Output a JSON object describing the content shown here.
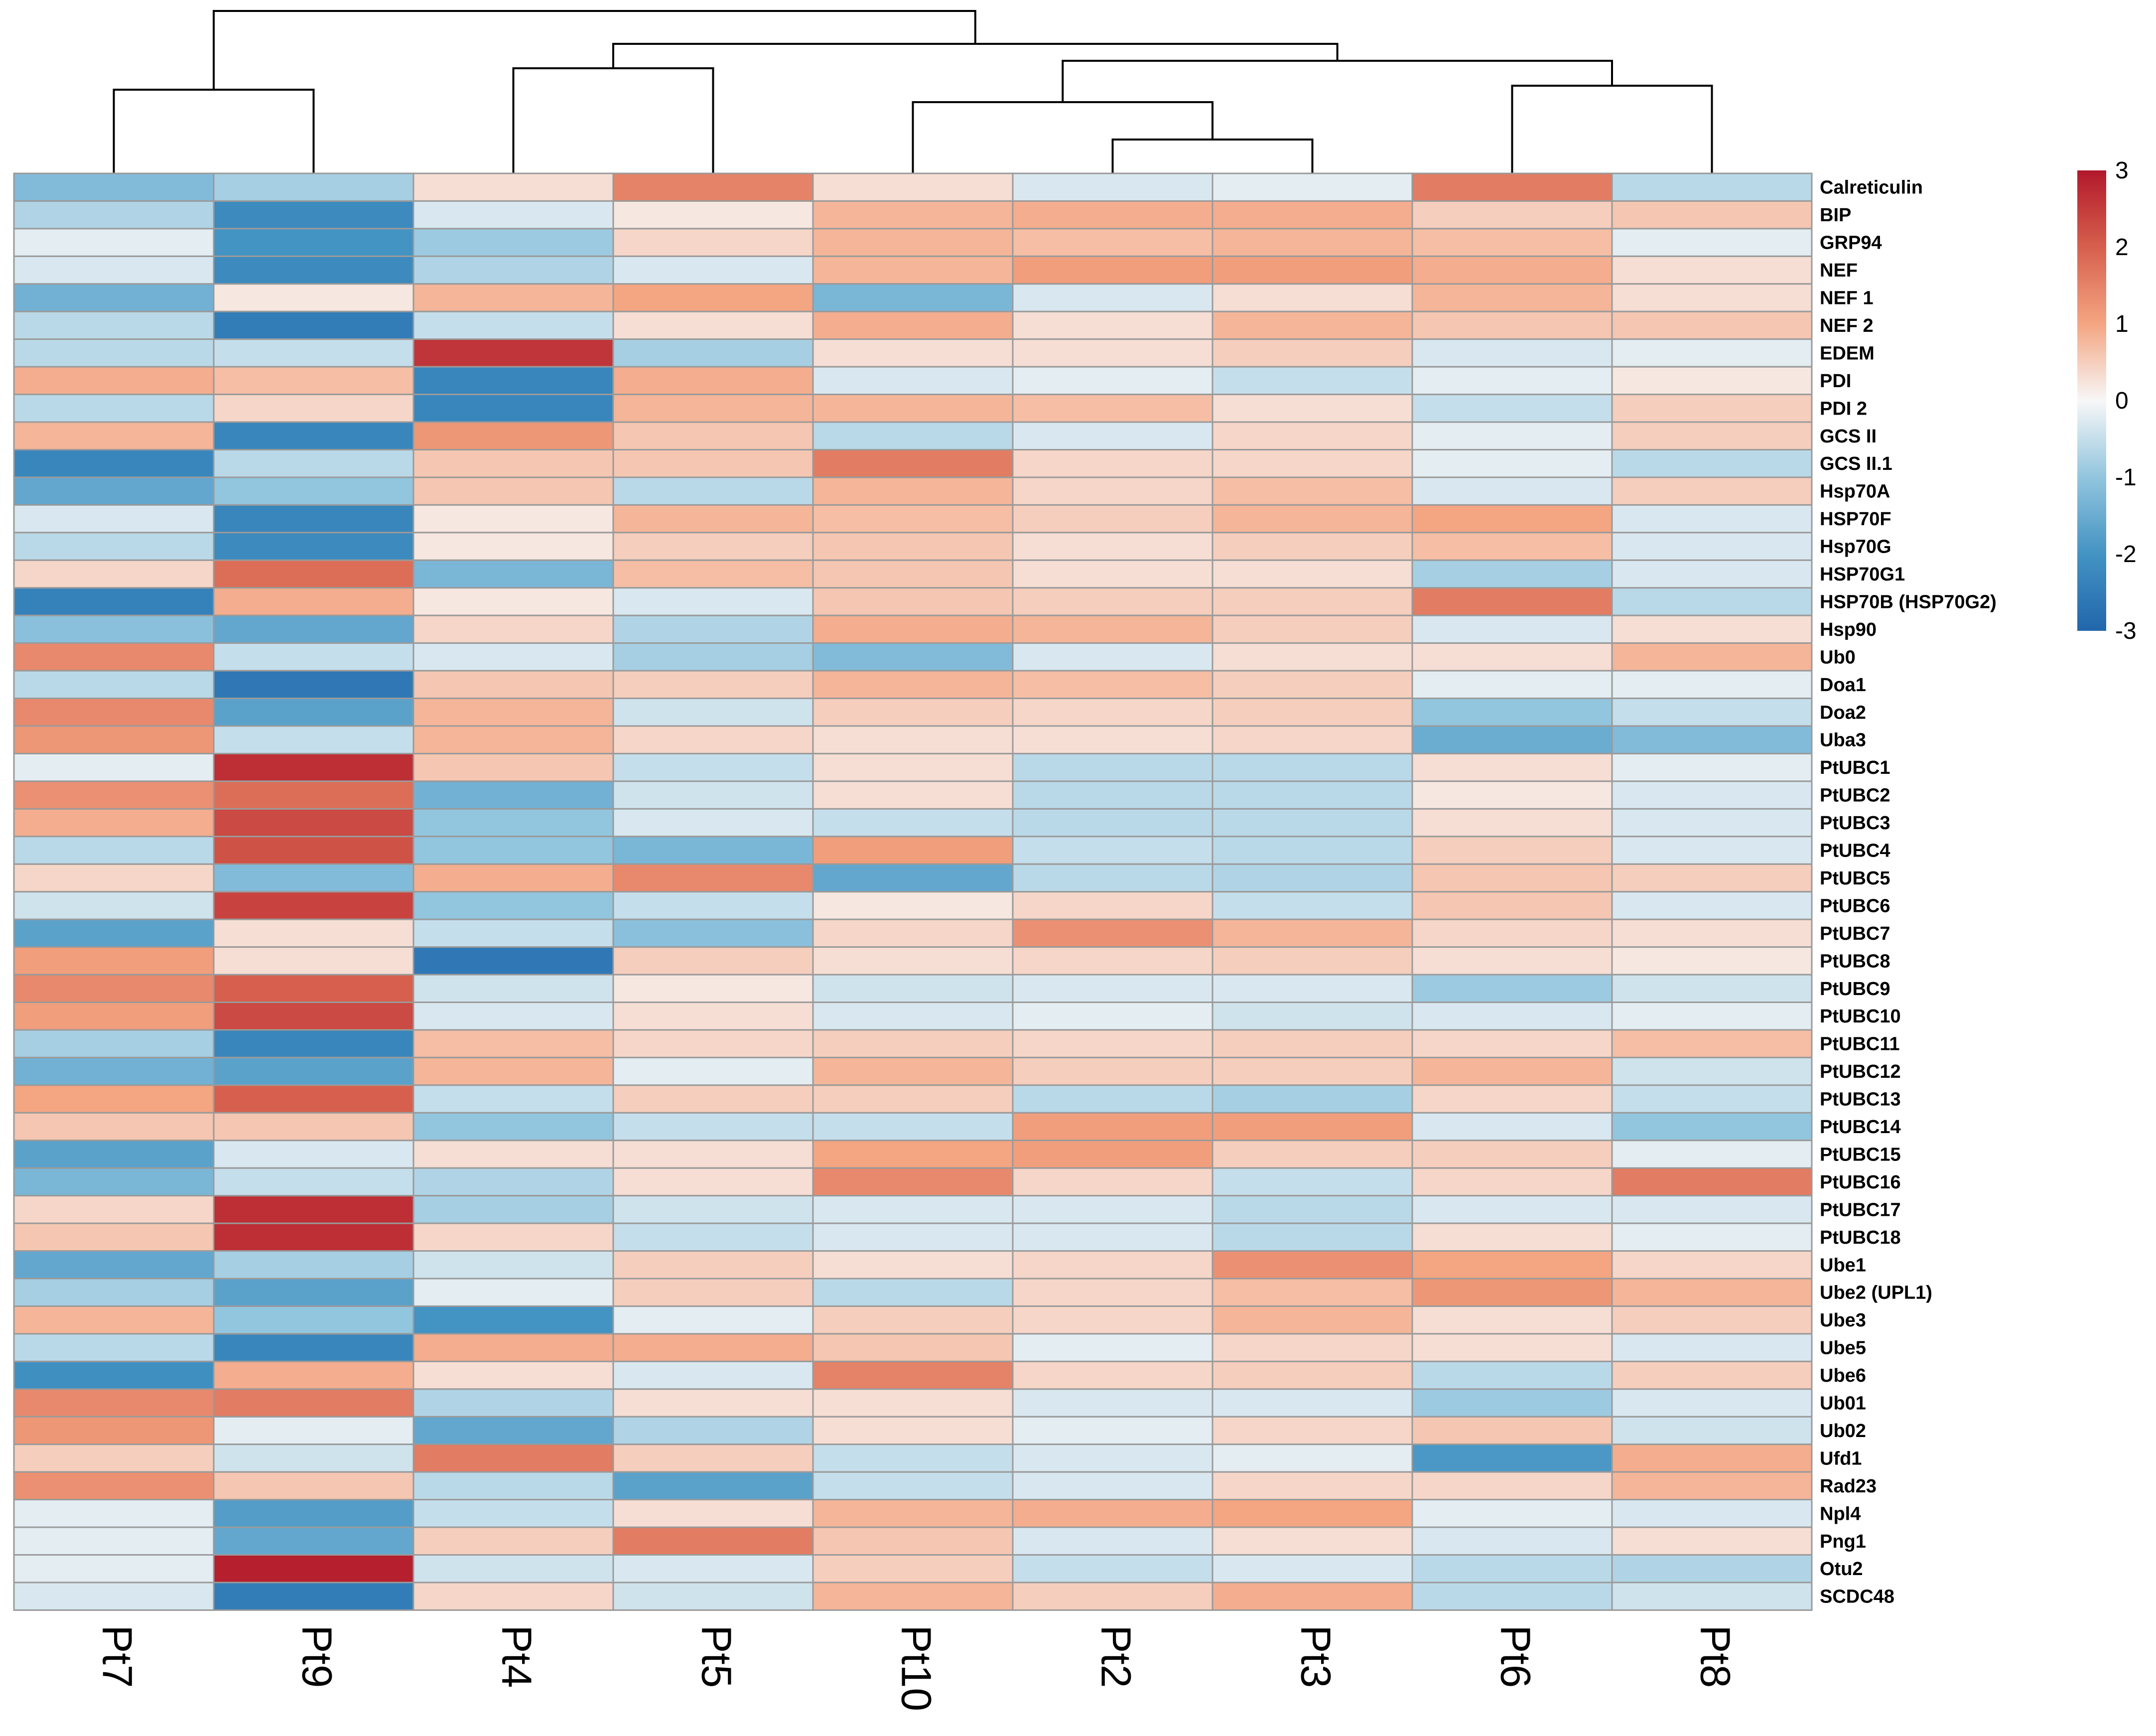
{
  "chart_data": {
    "type": "heatmap",
    "title": "",
    "columns": [
      "Pt7",
      "Pt9",
      "Pt4",
      "Pt5",
      "Pt10",
      "Pt2",
      "Pt3",
      "Pt6",
      "Pt8"
    ],
    "rows": [
      "Calreticulin",
      "BIP",
      "GRP94",
      "NEF",
      "NEF 1",
      "NEF 2",
      "EDEM",
      "PDI",
      "PDI 2",
      "GCS II",
      "GCS II.1",
      "Hsp70A",
      "HSP70F",
      "Hsp70G",
      "HSP70G1",
      "HSP70B (HSP70G2)",
      "Hsp90",
      "Ub0",
      "Doa1",
      "Doa2",
      "Uba3",
      "PtUBC1",
      "PtUBC2",
      "PtUBC3",
      "PtUBC4",
      "PtUBC5",
      "PtUBC6",
      "PtUBC7",
      "PtUBC8",
      "PtUBC9",
      "PtUBC10",
      "PtUBC11",
      "PtUBC12",
      "PtUBC13",
      "PtUBC14",
      "PtUBC15",
      "PtUBC16",
      "PtUBC17",
      "PtUBC18",
      "Ube1",
      "Ube2 (UPL1)",
      "Ube3",
      "Ube5",
      "Ube6",
      "Ub01",
      "Ub02",
      "Ufd1",
      "Rad23",
      "Npl4",
      "Png1",
      "Otu2",
      "SCDC48"
    ],
    "values": [
      [
        -1.2,
        -0.8,
        0.3,
        1.5,
        0.3,
        -0.3,
        -0.2,
        1.6,
        -0.6
      ],
      [
        -0.7,
        -2.2,
        -0.3,
        0.2,
        0.8,
        0.9,
        0.9,
        0.5,
        0.6
      ],
      [
        -0.2,
        -2.0,
        -0.9,
        0.4,
        0.8,
        0.7,
        0.8,
        0.7,
        -0.2
      ],
      [
        -0.3,
        -2.2,
        -0.7,
        -0.3,
        0.8,
        1.1,
        1.1,
        0.9,
        0.3
      ],
      [
        -1.4,
        0.2,
        0.8,
        1.0,
        -1.3,
        -0.3,
        0.3,
        0.8,
        0.3
      ],
      [
        -0.6,
        -2.5,
        -0.5,
        0.3,
        0.9,
        0.3,
        0.8,
        0.6,
        0.6
      ],
      [
        -0.6,
        -0.5,
        2.6,
        -0.8,
        0.3,
        0.3,
        0.5,
        -0.3,
        -0.2
      ],
      [
        0.9,
        0.7,
        -2.3,
        0.9,
        -0.3,
        -0.2,
        -0.5,
        -0.2,
        0.2
      ],
      [
        -0.6,
        0.4,
        -2.3,
        0.8,
        0.8,
        0.7,
        0.3,
        -0.5,
        0.5
      ],
      [
        0.8,
        -2.3,
        1.2,
        0.6,
        -0.6,
        -0.3,
        0.4,
        -0.2,
        0.5
      ],
      [
        -2.3,
        -0.6,
        0.6,
        0.6,
        1.6,
        0.4,
        0.4,
        -0.2,
        -0.6
      ],
      [
        -1.6,
        -1.0,
        0.6,
        -0.6,
        0.8,
        0.4,
        0.7,
        -0.3,
        0.5
      ],
      [
        -0.3,
        -2.3,
        0.2,
        0.8,
        0.7,
        0.5,
        0.8,
        1.0,
        -0.3
      ],
      [
        -0.6,
        -2.2,
        0.2,
        0.5,
        0.6,
        0.3,
        0.5,
        0.7,
        -0.3
      ],
      [
        0.4,
        1.8,
        -1.3,
        0.7,
        0.6,
        0.3,
        0.3,
        -0.8,
        -0.3
      ],
      [
        -2.4,
        0.9,
        0.2,
        -0.3,
        0.6,
        0.5,
        0.5,
        1.6,
        -0.6
      ],
      [
        -1.1,
        -1.6,
        0.4,
        -0.7,
        0.9,
        0.8,
        0.5,
        -0.3,
        0.3
      ],
      [
        1.4,
        -0.5,
        -0.3,
        -0.8,
        -1.2,
        -0.3,
        0.3,
        0.3,
        0.8
      ],
      [
        -0.6,
        -2.6,
        0.6,
        0.5,
        0.8,
        0.7,
        0.5,
        -0.2,
        -0.2
      ],
      [
        1.4,
        -1.7,
        0.8,
        -0.4,
        0.5,
        0.4,
        0.5,
        -1.0,
        -0.5
      ],
      [
        1.2,
        -0.5,
        0.8,
        0.4,
        0.3,
        0.3,
        0.4,
        -1.5,
        -1.2
      ],
      [
        -0.2,
        2.7,
        0.6,
        -0.5,
        0.3,
        -0.6,
        -0.6,
        0.3,
        -0.2
      ],
      [
        1.3,
        1.8,
        -1.4,
        -0.4,
        0.3,
        -0.6,
        -0.6,
        0.2,
        -0.3
      ],
      [
        0.9,
        2.3,
        -1.0,
        -0.3,
        -0.5,
        -0.6,
        -0.6,
        0.3,
        -0.3
      ],
      [
        -0.6,
        2.2,
        -1.0,
        -1.3,
        1.1,
        -0.5,
        -0.6,
        0.5,
        -0.3
      ],
      [
        0.4,
        -1.2,
        0.9,
        1.4,
        -1.6,
        -0.6,
        -0.7,
        0.6,
        0.5
      ],
      [
        -0.4,
        2.4,
        -1.0,
        -0.5,
        0.2,
        0.4,
        -0.5,
        0.6,
        -0.3
      ],
      [
        -1.7,
        0.3,
        -0.5,
        -1.1,
        0.4,
        1.3,
        0.8,
        0.4,
        0.3
      ],
      [
        1.1,
        0.3,
        -2.6,
        0.5,
        0.3,
        0.4,
        0.5,
        0.3,
        0.2
      ],
      [
        1.4,
        2.0,
        -0.4,
        0.2,
        -0.4,
        -0.3,
        -0.3,
        -0.9,
        -0.4
      ],
      [
        1.1,
        2.3,
        -0.3,
        0.3,
        -0.3,
        -0.2,
        -0.4,
        -0.3,
        -0.2
      ],
      [
        -0.8,
        -2.3,
        0.7,
        0.4,
        0.5,
        0.4,
        0.5,
        0.4,
        0.7
      ],
      [
        -1.4,
        -1.7,
        0.8,
        -0.2,
        0.8,
        0.5,
        0.5,
        0.8,
        -0.4
      ],
      [
        1.0,
        2.0,
        -0.5,
        0.5,
        0.5,
        -0.6,
        -0.8,
        0.4,
        -0.5
      ],
      [
        0.6,
        0.6,
        -1.0,
        -0.5,
        -0.5,
        1.1,
        1.1,
        -0.3,
        -1.0
      ],
      [
        -1.7,
        -0.3,
        0.3,
        0.3,
        1.0,
        1.1,
        0.5,
        0.5,
        -0.2
      ],
      [
        -1.3,
        -0.5,
        -0.7,
        0.3,
        1.4,
        0.4,
        -0.5,
        0.4,
        1.6
      ],
      [
        0.4,
        2.7,
        -0.8,
        -0.4,
        -0.3,
        -0.3,
        -0.6,
        -0.3,
        -0.3
      ],
      [
        0.6,
        2.7,
        0.4,
        -0.5,
        -0.3,
        -0.3,
        -0.6,
        0.3,
        -0.2
      ],
      [
        -1.6,
        -0.8,
        -0.4,
        0.5,
        0.3,
        0.4,
        1.3,
        1.0,
        0.4
      ],
      [
        -0.8,
        -1.7,
        -0.2,
        0.5,
        -0.6,
        0.4,
        0.7,
        1.2,
        0.8
      ],
      [
        0.8,
        -1.0,
        -2.0,
        -0.2,
        0.5,
        0.4,
        0.8,
        0.3,
        0.5
      ],
      [
        -0.6,
        -2.3,
        0.9,
        0.9,
        0.6,
        -0.2,
        0.4,
        0.3,
        -0.3
      ],
      [
        -2.1,
        0.9,
        0.3,
        -0.3,
        1.5,
        0.4,
        0.5,
        -0.6,
        0.5
      ],
      [
        1.4,
        1.6,
        -0.7,
        0.3,
        0.3,
        -0.3,
        -0.3,
        -0.9,
        -0.3
      ],
      [
        1.2,
        -0.2,
        -1.6,
        -0.7,
        0.3,
        -0.2,
        0.4,
        0.6,
        -0.4
      ],
      [
        0.5,
        -0.4,
        1.6,
        0.5,
        -0.5,
        -0.3,
        -0.2,
        -1.9,
        0.9
      ],
      [
        1.3,
        0.6,
        -0.6,
        -1.7,
        -0.5,
        -0.3,
        0.4,
        0.4,
        0.8
      ],
      [
        -0.2,
        -1.8,
        -0.5,
        0.3,
        0.8,
        0.9,
        1.0,
        -0.2,
        -0.3
      ],
      [
        -0.2,
        -1.6,
        0.5,
        1.6,
        0.6,
        -0.3,
        0.3,
        -0.3,
        0.3
      ],
      [
        -0.2,
        2.9,
        -0.4,
        -0.3,
        0.5,
        -0.5,
        -0.3,
        -0.6,
        -0.7
      ],
      [
        -0.3,
        -2.5,
        0.4,
        -0.4,
        0.8,
        0.5,
        0.9,
        -0.6,
        -0.4
      ]
    ],
    "colorbar": {
      "min": -3,
      "max": 3,
      "ticks": [
        3,
        2,
        1,
        0,
        -1,
        -2,
        -3
      ]
    },
    "colorscale": [
      "#2166ac",
      "#4393c3",
      "#92c5de",
      "#f7f7f7",
      "#f4a582",
      "#d6604d",
      "#b2182b"
    ],
    "dendrogram": "column",
    "grid": true
  }
}
